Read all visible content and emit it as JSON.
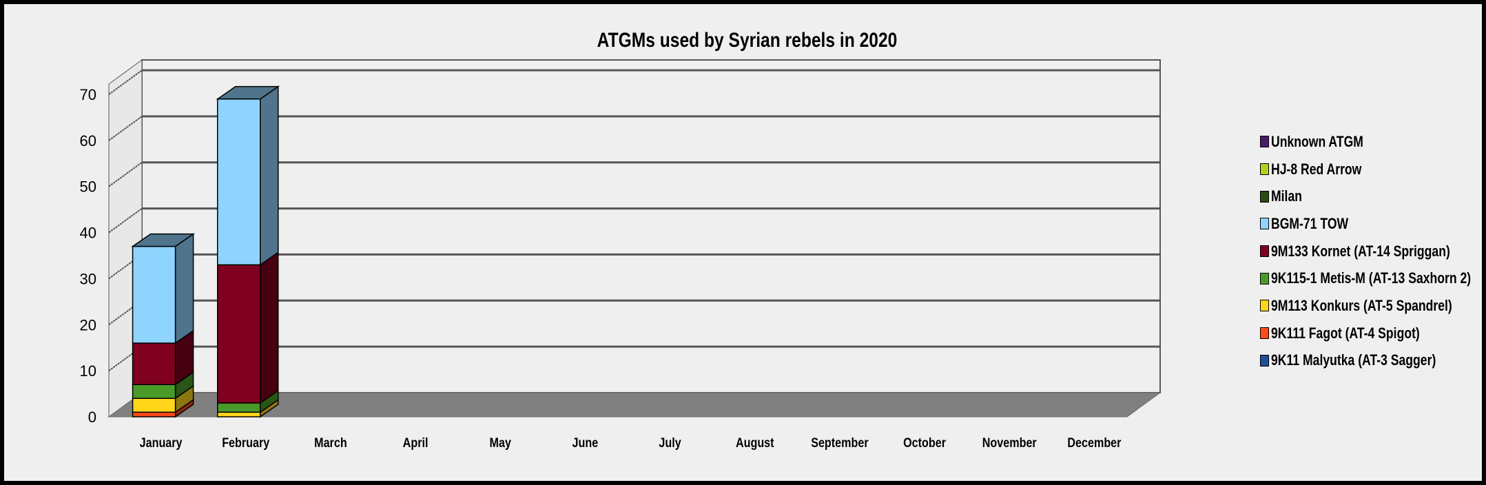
{
  "chart_data": {
    "type": "bar",
    "stacked": true,
    "three_d": true,
    "title": "ATGMs used by Syrian rebels in 2020",
    "xlabel": "",
    "ylabel": "",
    "ylim": [
      0,
      70
    ],
    "yticks": [
      "0",
      "10",
      "20",
      "30",
      "40",
      "50",
      "60",
      "70"
    ],
    "grid": true,
    "legend_position": "right",
    "categories": [
      "January",
      "February",
      "March",
      "April",
      "May",
      "June",
      "July",
      "August",
      "September",
      "October",
      "November",
      "December"
    ],
    "series": [
      {
        "name": "9K11 Malyutka (AT-3 Sagger)",
        "color": "#1f4e9a",
        "values": [
          0,
          0,
          0,
          0,
          0,
          0,
          0,
          0,
          0,
          0,
          0,
          0
        ]
      },
      {
        "name": "9K111 Fagot (AT-4 Spigot)",
        "color": "#ff4a1a",
        "values": [
          1,
          0,
          0,
          0,
          0,
          0,
          0,
          0,
          0,
          0,
          0,
          0
        ]
      },
      {
        "name": "9M113 Konkurs (AT-5 Spandrel)",
        "color": "#ffd61a",
        "values": [
          3,
          1,
          0,
          0,
          0,
          0,
          0,
          0,
          0,
          0,
          0,
          0
        ]
      },
      {
        "name": "9K115-1 Metis-M (AT-13 Saxhorn 2)",
        "color": "#4a9a2a",
        "values": [
          3,
          2,
          0,
          0,
          0,
          0,
          0,
          0,
          0,
          0,
          0,
          0
        ]
      },
      {
        "name": "9M133 Kornet (AT-14 Spriggan)",
        "color": "#800020",
        "values": [
          9,
          30,
          0,
          0,
          0,
          0,
          0,
          0,
          0,
          0,
          0,
          0
        ]
      },
      {
        "name": "BGM-71 TOW",
        "color": "#8fd3ff",
        "values": [
          21,
          36,
          0,
          0,
          0,
          0,
          0,
          0,
          0,
          0,
          0,
          0
        ]
      },
      {
        "name": "Milan",
        "color": "#2a4a14",
        "values": [
          0,
          0,
          0,
          0,
          0,
          0,
          0,
          0,
          0,
          0,
          0,
          0
        ]
      },
      {
        "name": "HJ-8 Red Arrow",
        "color": "#b0d21a",
        "values": [
          0,
          0,
          0,
          0,
          0,
          0,
          0,
          0,
          0,
          0,
          0,
          0
        ]
      },
      {
        "name": "Unknown ATGM",
        "color": "#4a1a6a",
        "values": [
          0,
          0,
          0,
          0,
          0,
          0,
          0,
          0,
          0,
          0,
          0,
          0
        ]
      }
    ]
  }
}
